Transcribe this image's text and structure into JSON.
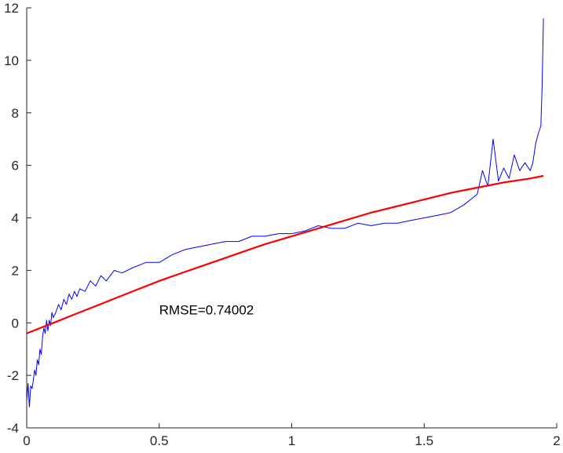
{
  "chart_data": {
    "type": "line",
    "title": "",
    "xlabel": "",
    "ylabel": "",
    "xlim": [
      0,
      2
    ],
    "ylim": [
      -4,
      12
    ],
    "x_ticks": [
      0,
      0.5,
      1,
      1.5,
      2
    ],
    "x_tick_labels": [
      "0",
      "0.5",
      "1",
      "1.5",
      "2"
    ],
    "y_ticks": [
      -4,
      -2,
      0,
      2,
      4,
      6,
      8,
      10,
      12
    ],
    "y_tick_labels": [
      "-4",
      "-2",
      "0",
      "2",
      "4",
      "6",
      "8",
      "10",
      "12"
    ],
    "grid": false,
    "box": "left-bottom axes only",
    "annotation": {
      "text": "RMSE=0.74002",
      "x": 0.5,
      "y": 0.5
    },
    "series": [
      {
        "style": "thin noisy line",
        "color": "#0000ff",
        "x": [
          0.0,
          0.005,
          0.01,
          0.015,
          0.02,
          0.025,
          0.03,
          0.035,
          0.04,
          0.045,
          0.05,
          0.055,
          0.06,
          0.065,
          0.07,
          0.075,
          0.08,
          0.085,
          0.09,
          0.095,
          0.1,
          0.11,
          0.12,
          0.13,
          0.14,
          0.15,
          0.16,
          0.17,
          0.18,
          0.19,
          0.2,
          0.22,
          0.24,
          0.26,
          0.28,
          0.3,
          0.33,
          0.36,
          0.4,
          0.45,
          0.5,
          0.55,
          0.6,
          0.65,
          0.7,
          0.75,
          0.8,
          0.85,
          0.9,
          0.95,
          1.0,
          1.05,
          1.1,
          1.15,
          1.2,
          1.25,
          1.3,
          1.35,
          1.4,
          1.45,
          1.5,
          1.55,
          1.6,
          1.65,
          1.7,
          1.72,
          1.74,
          1.76,
          1.78,
          1.8,
          1.82,
          1.84,
          1.86,
          1.88,
          1.9,
          1.91,
          1.92,
          1.93,
          1.94,
          1.945,
          1.95
        ],
        "y": [
          -3.0,
          -2.3,
          -3.2,
          -2.4,
          -2.5,
          -2.2,
          -1.8,
          -2.0,
          -1.4,
          -1.6,
          -1.0,
          -1.2,
          -0.5,
          -0.2,
          -0.4,
          0.1,
          -0.3,
          0.1,
          -0.1,
          0.4,
          0.2,
          0.4,
          0.7,
          0.5,
          0.9,
          0.7,
          1.1,
          0.9,
          1.2,
          1.0,
          1.3,
          1.2,
          1.6,
          1.4,
          1.8,
          1.6,
          2.0,
          1.9,
          2.1,
          2.3,
          2.3,
          2.6,
          2.8,
          2.9,
          3.0,
          3.1,
          3.1,
          3.3,
          3.3,
          3.4,
          3.4,
          3.5,
          3.7,
          3.6,
          3.6,
          3.8,
          3.7,
          3.8,
          3.8,
          3.9,
          4.0,
          4.1,
          4.2,
          4.5,
          4.9,
          5.8,
          5.2,
          7.0,
          5.4,
          5.9,
          5.5,
          6.4,
          5.8,
          6.1,
          5.8,
          6.1,
          6.8,
          7.2,
          7.5,
          9.0,
          11.6
        ]
      },
      {
        "style": "thick smooth fit line",
        "color": "#ff0000",
        "x": [
          0.0,
          0.1,
          0.2,
          0.3,
          0.4,
          0.5,
          0.6,
          0.7,
          0.8,
          0.9,
          1.0,
          1.1,
          1.2,
          1.3,
          1.4,
          1.5,
          1.6,
          1.7,
          1.8,
          1.9,
          1.95
        ],
        "y": [
          -0.4,
          0.0,
          0.4,
          0.8,
          1.2,
          1.6,
          1.95,
          2.3,
          2.65,
          3.0,
          3.3,
          3.6,
          3.9,
          4.2,
          4.45,
          4.7,
          4.95,
          5.15,
          5.35,
          5.5,
          5.6
        ]
      }
    ]
  }
}
